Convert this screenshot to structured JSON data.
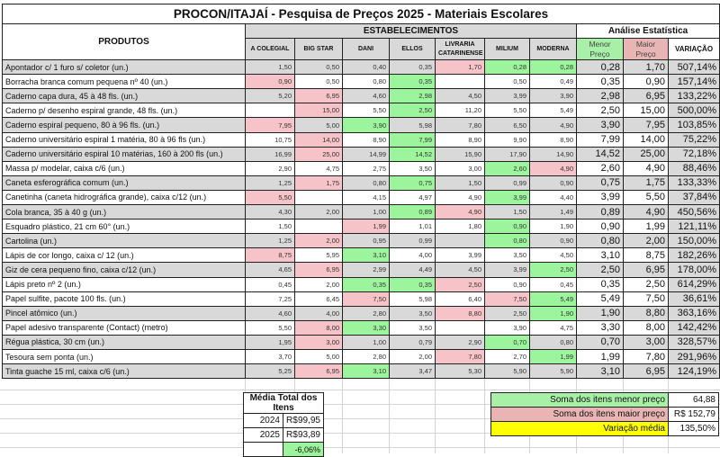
{
  "title": "PROCON/ITAJAÍ - Pesquisa de Preços 2025 - Materiais Escolares",
  "headers": {
    "produtos": "PRODUTOS",
    "estabelecimentos": "ESTABELECIMENTOS",
    "analise": "Análise Estatística",
    "menor": "Menor Preço",
    "maior": "Maior Preço",
    "variacao": "VARIAÇÃO",
    "stores": [
      "A COLEGIAL",
      "BIG STAR",
      "DANI",
      "ELLOS",
      "LIVRARIA CATARINENSE",
      "MILIUM",
      "MODERNA"
    ]
  },
  "rows": [
    {
      "name": "Apontador c/ 1 furo s/ coletor (un.)",
      "prices": [
        "1,50",
        "0,50",
        "0,40",
        "0,35",
        "1,70",
        "0,28",
        "0,28"
      ],
      "marks": "----HLL",
      "menor": "0,28",
      "maior": "1,70",
      "variacao": "507,14%"
    },
    {
      "name": "Borracha branca comum pequena nº 40 (un.)",
      "prices": [
        "0,90",
        "0,50",
        "0,80",
        "0,35",
        "",
        "0,50",
        "0,49"
      ],
      "marks": "H--L---",
      "menor": "0,35",
      "maior": "0,90",
      "variacao": "157,14%"
    },
    {
      "name": "Caderno capa dura, 45 à 48 fls. (un.)",
      "prices": [
        "5,20",
        "6,95",
        "4,60",
        "2,98",
        "4,50",
        "3,99",
        "3,90"
      ],
      "marks": "-H-L---",
      "menor": "2,98",
      "maior": "6,95",
      "variacao": "133,22%"
    },
    {
      "name": "Caderno p/ desenho espiral grande, 48 fls. (un.)",
      "prices": [
        "",
        "15,00",
        "5,50",
        "2,50",
        "11,20",
        "5,50",
        "5,49"
      ],
      "marks": "-H-L---",
      "menor": "2,50",
      "maior": "15,00",
      "variacao": "500,00%"
    },
    {
      "name": "Caderno espiral pequeno, 80 à 96 fls. (un.)",
      "prices": [
        "7,95",
        "5,00",
        "3,90",
        "5,98",
        "7,80",
        "6,50",
        "4,90"
      ],
      "marks": "H-L----",
      "menor": "3,90",
      "maior": "7,95",
      "variacao": "103,85%"
    },
    {
      "name": "Caderno universitário espiral 1 matéria, 80 à 96 fls (un.)",
      "prices": [
        "10,75",
        "14,00",
        "8,90",
        "7,99",
        "8,90",
        "9,90",
        "8,90"
      ],
      "marks": "-H-L---",
      "menor": "7,99",
      "maior": "14,00",
      "variacao": "75,22%"
    },
    {
      "name": "Caderno universitário espiral 10 matérias, 160 à 200 fls (un.)",
      "prices": [
        "16,99",
        "25,00",
        "14,99",
        "14,52",
        "15,90",
        "17,90",
        "14,90"
      ],
      "marks": "-H-L---",
      "menor": "14,52",
      "maior": "25,00",
      "variacao": "72,18%"
    },
    {
      "name": "Massa p/ modelar, caixa c/6 (un.)",
      "prices": [
        "2,90",
        "4,75",
        "2,75",
        "3,50",
        "3,00",
        "2,60",
        "4,90"
      ],
      "marks": "-----LH",
      "menor": "2,60",
      "maior": "4,90",
      "variacao": "88,46%"
    },
    {
      "name": "Caneta esferográfica comum (un.)",
      "prices": [
        "1,25",
        "1,75",
        "0,80",
        "0,75",
        "1,50",
        "0,99",
        "0,90"
      ],
      "marks": "-H-L---",
      "menor": "0,75",
      "maior": "1,75",
      "variacao": "133,33%"
    },
    {
      "name": "Canetinha (caneta hidrográfica grande), caixa c/12 (un.)",
      "prices": [
        "5,50",
        "",
        "4,15",
        "4,97",
        "4,90",
        "3,99",
        "4,40"
      ],
      "marks": "H----L-",
      "menor": "3,99",
      "maior": "5,50",
      "variacao": "37,84%"
    },
    {
      "name": "Cola branca, 35 à 40 g (un.)",
      "prices": [
        "4,30",
        "2,00",
        "1,00",
        "0,89",
        "4,90",
        "1,50",
        "1,49"
      ],
      "marks": "---LH--",
      "menor": "0,89",
      "maior": "4,90",
      "variacao": "450,56%"
    },
    {
      "name": "Esquadro plástico, 21 cm 60° (un.)",
      "prices": [
        "1,50",
        "",
        "1,99",
        "1,01",
        "1,80",
        "0,90",
        "1,90"
      ],
      "marks": "--H--L-",
      "menor": "0,90",
      "maior": "1,99",
      "variacao": "121,11%"
    },
    {
      "name": "Cartolina (un.)",
      "prices": [
        "1,25",
        "2,00",
        "0,95",
        "0,99",
        "",
        "0,80",
        "0,90"
      ],
      "marks": "-H---L-",
      "menor": "0,80",
      "maior": "2,00",
      "variacao": "150,00%"
    },
    {
      "name": "Lápis de cor longo, caixa c/ 12 (un.)",
      "prices": [
        "8,75",
        "5,95",
        "3,10",
        "4,00",
        "3,99",
        "3,50",
        "4,50"
      ],
      "marks": "H-L----",
      "menor": "3,10",
      "maior": "8,75",
      "variacao": "182,26%"
    },
    {
      "name": "Giz de cera pequeno fino, caixa c/12 (un.)",
      "prices": [
        "4,65",
        "6,95",
        "2,99",
        "4,49",
        "4,50",
        "3,99",
        "2,50"
      ],
      "marks": "-H----L",
      "menor": "2,50",
      "maior": "6,95",
      "variacao": "178,00%"
    },
    {
      "name": "Lápis preto nº 2 (un.)",
      "prices": [
        "0,45",
        "2,00",
        "0,35",
        "0,35",
        "2,50",
        "0,90",
        "0,45"
      ],
      "marks": "--LLH--",
      "menor": "0,35",
      "maior": "2,50",
      "variacao": "614,29%"
    },
    {
      "name": "Papel sulfite, pacote 100 fls. (un.)",
      "prices": [
        "7,25",
        "6,45",
        "7,50",
        "5,98",
        "6,40",
        "7,50",
        "5,49"
      ],
      "marks": "--H--HL",
      "menor": "5,49",
      "maior": "7,50",
      "variacao": "36,61%"
    },
    {
      "name": "Pincel atômico (un.)",
      "prices": [
        "4,60",
        "4,00",
        "2,80",
        "3,50",
        "8,80",
        "2,50",
        "1,90"
      ],
      "marks": "----H-L",
      "menor": "1,90",
      "maior": "8,80",
      "variacao": "363,16%"
    },
    {
      "name": "Papel adesivo transparente (Contact) (metro)",
      "prices": [
        "5,50",
        "8,00",
        "3,30",
        "3,50",
        "",
        "3,90",
        "4,75"
      ],
      "marks": "-HL----",
      "menor": "3,30",
      "maior": "8,00",
      "variacao": "142,42%"
    },
    {
      "name": "Régua plástica, 30 cm (un.)",
      "prices": [
        "1,95",
        "3,00",
        "1,00",
        "0,79",
        "2,90",
        "0,70",
        "0,80"
      ],
      "marks": "-H---L-",
      "menor": "0,70",
      "maior": "3,00",
      "variacao": "328,57%"
    },
    {
      "name": "Tesoura sem ponta (un.)",
      "prices": [
        "3,70",
        "5,00",
        "2,80",
        "2,00",
        "7,80",
        "2,70",
        "1,99"
      ],
      "marks": "----H-L",
      "menor": "1,99",
      "maior": "7,80",
      "variacao": "291,96%"
    },
    {
      "name": "Tinta guache 15 ml, caixa c/6 (un.)",
      "prices": [
        "5,25",
        "6,95",
        "3,10",
        "3,47",
        "5,30",
        "5,90",
        "5,90"
      ],
      "marks": "-HL----",
      "menor": "3,10",
      "maior": "6,95",
      "variacao": "124,19%"
    }
  ],
  "media": {
    "title": "Média Total dos Itens",
    "y2024": "2024",
    "c2024": "R$",
    "v2024": "99,95",
    "y2025": "2025",
    "c2025": "R$",
    "v2025": "93,89",
    "diff": "-6,06%"
  },
  "summary": {
    "menor_label": "Soma dos itens menor preço",
    "menor": "64,88",
    "maior_label": "Soma dos itens maior preço",
    "maior": "R$ 152,79",
    "var_label": "Variação média",
    "var": "135,50%"
  },
  "colors": {
    "low": "#9cf59c",
    "high": "#f6c4c8",
    "avg": "#ffff00"
  }
}
